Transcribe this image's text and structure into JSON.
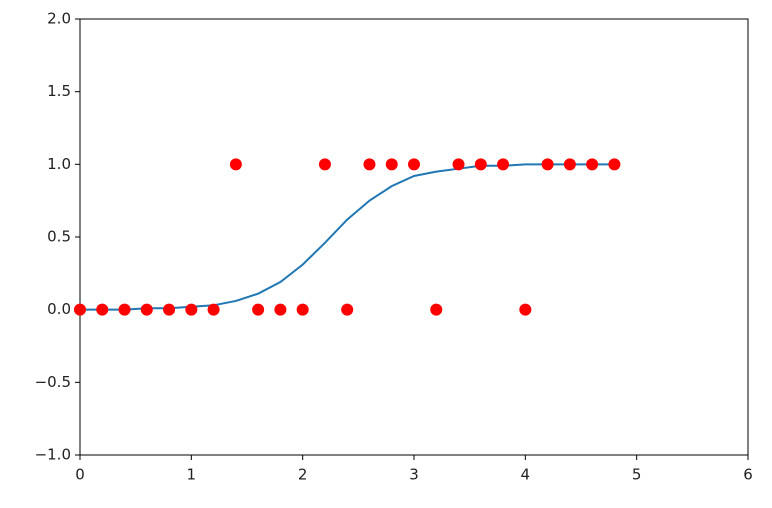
{
  "chart_data": {
    "type": "line",
    "x": [
      0,
      0.2,
      0.4,
      0.6,
      0.8,
      1.0,
      1.2,
      1.4,
      1.6,
      1.8,
      2.0,
      2.2,
      2.4,
      2.6,
      2.8,
      3.0,
      3.2,
      3.4,
      3.6,
      3.8,
      4.0,
      4.2,
      4.4,
      4.6,
      4.8
    ],
    "series": [
      {
        "type": "line",
        "color": "#1f77b4",
        "values": [
          0.0,
          0.0,
          0.0,
          0.01,
          0.01,
          0.02,
          0.03,
          0.06,
          0.11,
          0.19,
          0.31,
          0.46,
          0.62,
          0.75,
          0.85,
          0.92,
          0.95,
          0.97,
          0.99,
          0.99,
          1.0,
          1.0,
          1.0,
          1.0,
          1.0
        ]
      },
      {
        "type": "scatter",
        "color": "#ff0000",
        "values": [
          0,
          0,
          0,
          0,
          0,
          0,
          0,
          1,
          0,
          0,
          0,
          1,
          0,
          1,
          1,
          1,
          0,
          1,
          1,
          1,
          0,
          1,
          1,
          1,
          1
        ]
      }
    ],
    "xlim": [
      0,
      6
    ],
    "xticks": [
      0,
      1,
      2,
      3,
      4,
      5,
      6
    ],
    "ylim": [
      -1.0,
      2.0
    ],
    "yticks": [
      {
        "value": -1.0,
        "label": "−1.0"
      },
      {
        "value": -0.5,
        "label": "−0.5"
      },
      {
        "value": 0.0,
        "label": "0.0"
      },
      {
        "value": 0.5,
        "label": "0.5"
      },
      {
        "value": 1.0,
        "label": "1.0"
      },
      {
        "value": 1.5,
        "label": "1.5"
      },
      {
        "value": 2.0,
        "label": "2.0"
      }
    ],
    "grid": false
  }
}
